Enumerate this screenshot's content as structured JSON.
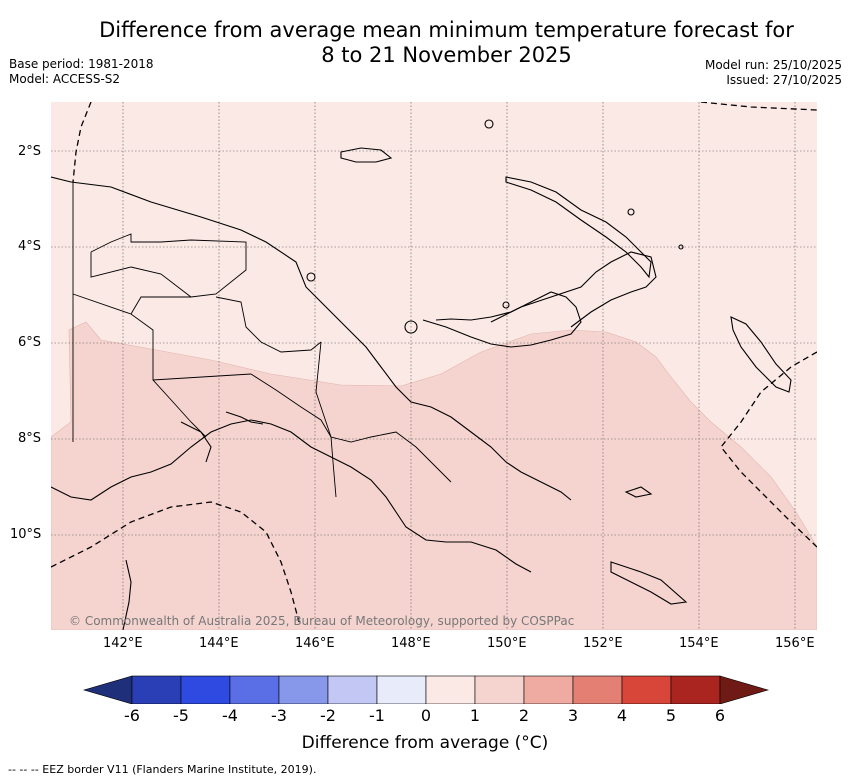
{
  "header": {
    "title_line1": "Difference from average mean minimum temperature forecast for",
    "title_line2": "8 to 21 November 2025",
    "base_period": "Base period: 1981-2018",
    "model": "Model: ACCESS-S2",
    "model_run": "Model run: 25/10/2025",
    "issued": "Issued: 27/10/2025"
  },
  "map": {
    "credit": "© Commonwealth of Australia 2025, Bureau of Meteorology, supported by COSPPac",
    "lat_labels": [
      "2°S",
      "4°S",
      "6°S",
      "8°S",
      "10°S"
    ],
    "lon_labels": [
      "142°E",
      "144°E",
      "146°E",
      "148°E",
      "150°E",
      "152°E",
      "154°E",
      "156°E"
    ]
  },
  "colorbar": {
    "label": "Difference from average (°C)",
    "ticks": [
      "-6",
      "-5",
      "-4",
      "-3",
      "-2",
      "-1",
      "0",
      "1",
      "2",
      "3",
      "4",
      "5",
      "6"
    ],
    "colors": [
      "#1f2f7a",
      "#2a3fb5",
      "#2e4ae0",
      "#5a6fe6",
      "#8797ea",
      "#c2c8f3",
      "#e8ebfa",
      "#fbe9e6",
      "#f5d4d0",
      "#efaaa2",
      "#e47f74",
      "#d8463a",
      "#ab2520",
      "#6f1a15"
    ]
  },
  "footer": {
    "legend": "-- -- -- EEZ border V11 (Flanders Marine Institute, 2019)."
  }
}
